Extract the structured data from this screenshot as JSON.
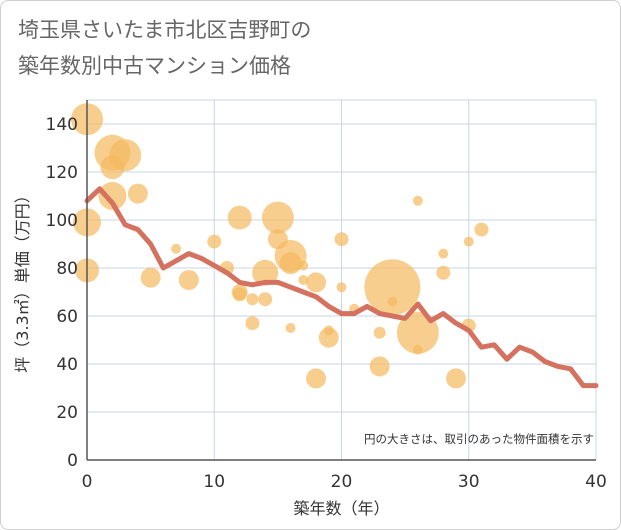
{
  "chart_data": {
    "type": "scatter",
    "title": "埼玉県さいたま市北区吉野町の\n築年数別中古マンション価格",
    "xlabel": "築年数（年）",
    "ylabel": "坪（3.3㎡）単価（万円）",
    "note": "円の大きさは、取引のあった物件面積を示す",
    "xlim": [
      0,
      40
    ],
    "ylim": [
      0,
      150
    ],
    "xticks": [
      0,
      10,
      20,
      30,
      40
    ],
    "yticks": [
      0,
      20,
      40,
      60,
      80,
      100,
      120,
      140
    ],
    "grid": true,
    "colors": {
      "bubble": "#f5b95f",
      "line": "#d4725f",
      "grid": "#c9d6e3",
      "axis": "#555555"
    },
    "series": [
      {
        "type": "bubble",
        "x": [
          0,
          0,
          0,
          2,
          2,
          2,
          3,
          4,
          5,
          7,
          8,
          10,
          11,
          12,
          12,
          12,
          13,
          13,
          14,
          14,
          15,
          15,
          16,
          16,
          16,
          17,
          17,
          18,
          18,
          19,
          19,
          20,
          20,
          21,
          23,
          23,
          24,
          24,
          26,
          26,
          26,
          28,
          28,
          29,
          30,
          30,
          31
        ],
        "y": [
          142,
          99,
          79,
          128,
          122,
          110,
          127,
          111,
          76,
          88,
          75,
          91,
          80,
          101,
          70,
          69,
          57,
          67,
          78,
          67,
          101,
          92,
          85,
          82,
          55,
          81,
          75,
          74,
          34,
          51,
          54,
          92,
          72,
          63,
          53,
          39,
          72,
          66,
          53,
          46,
          108,
          86,
          78,
          34,
          91,
          56,
          96
        ],
        "size": [
          16,
          14,
          12,
          18,
          12,
          14,
          16,
          10,
          10,
          5,
          10,
          7,
          7,
          12,
          8,
          7,
          7,
          6,
          13,
          7,
          16,
          10,
          16,
          11,
          5,
          5,
          5,
          10,
          10,
          10,
          5,
          7,
          5,
          5,
          6,
          10,
          28,
          5,
          21,
          5,
          5,
          5,
          7,
          10,
          5,
          7,
          7
        ]
      },
      {
        "type": "line",
        "name": "",
        "x": [
          0,
          1,
          2,
          3,
          4,
          5,
          6,
          7,
          8,
          9,
          10,
          11,
          12,
          13,
          14,
          15,
          16,
          17,
          18,
          19,
          20,
          21,
          22,
          23,
          24,
          25,
          26,
          27,
          28,
          29,
          30,
          31,
          32,
          33,
          34,
          35,
          36,
          37,
          38,
          39,
          40
        ],
        "y": [
          108,
          113,
          107,
          98,
          96,
          90,
          80,
          83,
          86,
          84,
          81,
          78,
          74,
          73,
          74,
          74,
          72,
          70,
          68,
          64,
          61,
          61,
          64,
          61,
          60,
          59,
          65,
          58,
          61,
          57,
          54,
          47,
          48,
          42,
          47,
          45,
          41,
          39,
          38,
          31,
          31
        ]
      }
    ]
  }
}
